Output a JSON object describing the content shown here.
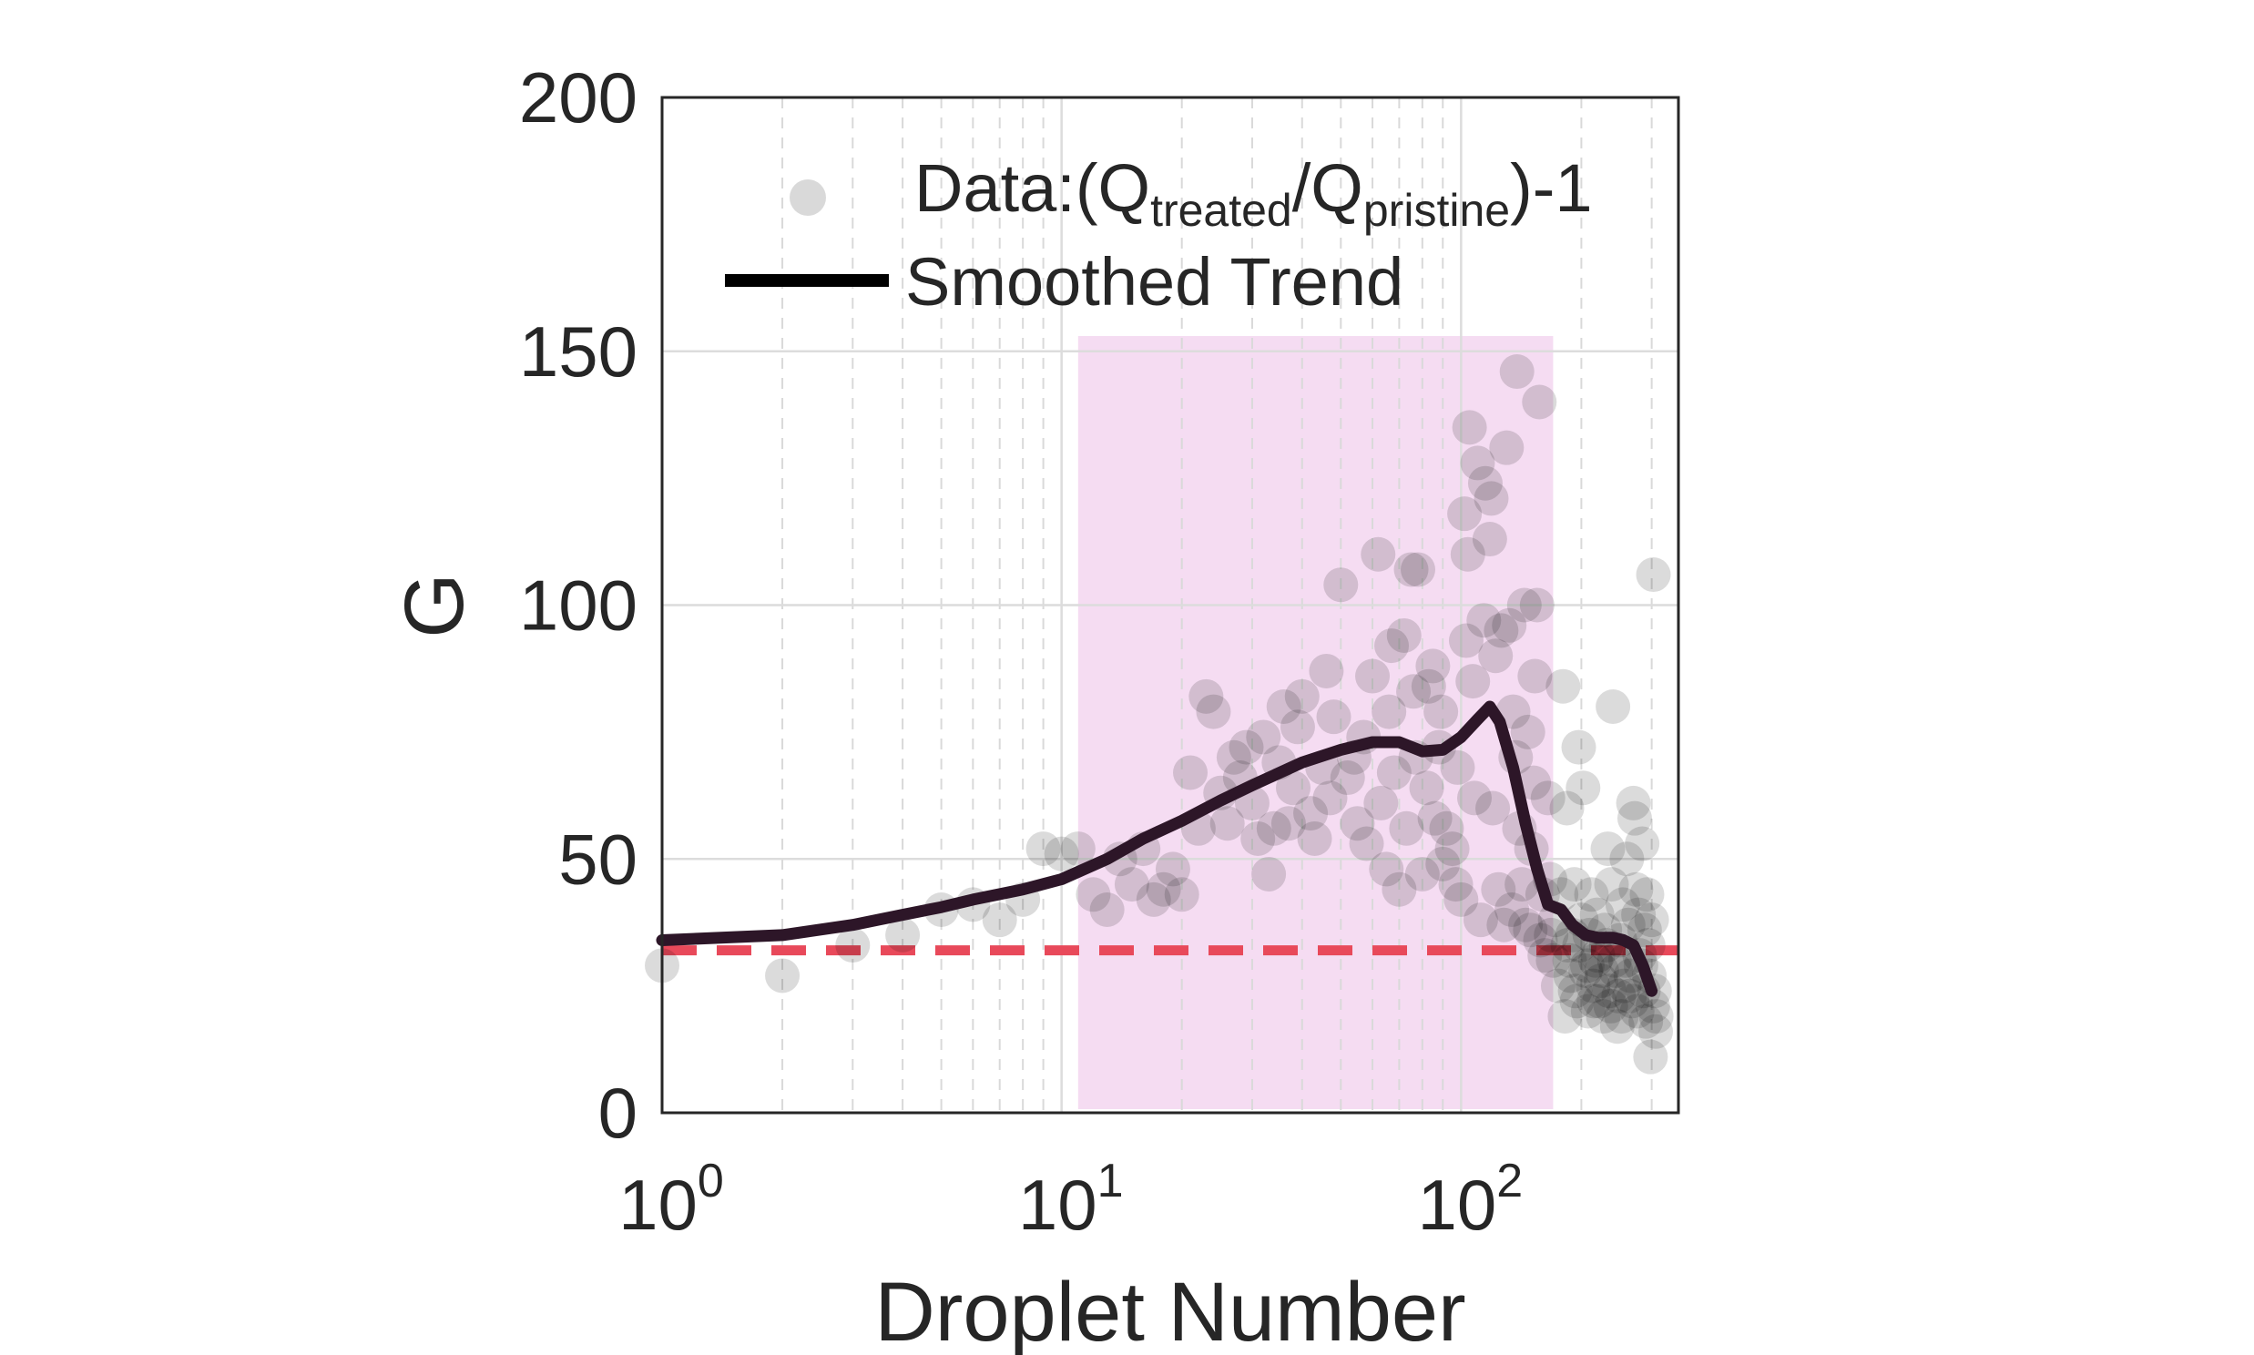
{
  "chart_data": {
    "type": "scatter",
    "xscale": "log",
    "xlabel": "Droplet Number",
    "ylabel": "G",
    "xlim": [
      1,
      350
    ],
    "ylim": [
      0,
      200
    ],
    "xticks": [
      {
        "base": "10",
        "exp": "0",
        "value": 1
      },
      {
        "base": "10",
        "exp": "1",
        "value": 10
      },
      {
        "base": "10",
        "exp": "2",
        "value": 100
      }
    ],
    "yticks": [
      0,
      50,
      100,
      150,
      200
    ],
    "grid": true,
    "highlight_region": {
      "x_start": 11,
      "x_end": 170,
      "y_top": 153,
      "color": "#f5dcf2"
    },
    "reference_line": {
      "y": 32,
      "color": "#e8495a",
      "style": "dashed"
    },
    "legend": {
      "position": "top",
      "data_label_prefix": "Data:(Q",
      "data_label_sub1": "treated",
      "data_label_mid": "/Q",
      "data_label_sub2": "pristine",
      "data_label_suffix": ")-1",
      "trend_label": "Smoothed Trend"
    },
    "series": [
      {
        "name": "Data:(Qtreated/Qpristine)-1",
        "kind": "scatter",
        "color": "#000000",
        "points": [
          [
            1,
            29
          ],
          [
            2,
            27
          ],
          [
            3,
            33
          ],
          [
            4,
            35
          ],
          [
            5,
            40
          ],
          [
            6,
            41
          ],
          [
            7,
            38
          ],
          [
            8,
            42
          ],
          [
            9,
            52
          ],
          [
            10,
            51
          ],
          [
            11,
            52
          ],
          [
            12,
            43
          ],
          [
            13,
            40
          ],
          [
            14,
            50
          ],
          [
            15,
            45
          ],
          [
            16,
            52
          ],
          [
            17,
            42
          ],
          [
            18,
            44
          ],
          [
            19,
            48
          ],
          [
            20,
            43
          ],
          [
            21,
            67
          ],
          [
            22,
            56
          ],
          [
            23,
            82
          ],
          [
            24,
            79
          ],
          [
            25,
            63
          ],
          [
            26,
            57
          ],
          [
            27,
            70
          ],
          [
            28,
            66
          ],
          [
            29,
            72
          ],
          [
            30,
            61
          ],
          [
            31,
            54
          ],
          [
            32,
            74
          ],
          [
            33,
            47
          ],
          [
            34,
            56
          ],
          [
            35,
            69
          ],
          [
            36,
            80
          ],
          [
            37,
            57
          ],
          [
            38,
            64
          ],
          [
            39,
            76
          ],
          [
            40,
            82
          ],
          [
            42,
            59
          ],
          [
            43,
            54
          ],
          [
            45,
            68
          ],
          [
            46,
            87
          ],
          [
            47,
            62
          ],
          [
            48,
            78
          ],
          [
            50,
            104
          ],
          [
            52,
            66
          ],
          [
            54,
            70
          ],
          [
            55,
            57
          ],
          [
            57,
            74
          ],
          [
            58,
            53
          ],
          [
            60,
            86
          ],
          [
            62,
            110
          ],
          [
            63,
            61
          ],
          [
            65,
            48
          ],
          [
            66,
            79
          ],
          [
            67,
            92
          ],
          [
            68,
            67
          ],
          [
            70,
            44
          ],
          [
            72,
            94
          ],
          [
            73,
            56
          ],
          [
            75,
            107
          ],
          [
            76,
            83
          ],
          [
            77,
            70
          ],
          [
            78,
            107
          ],
          [
            80,
            47
          ],
          [
            82,
            64
          ],
          [
            83,
            84
          ],
          [
            85,
            88
          ],
          [
            86,
            58
          ],
          [
            88,
            72
          ],
          [
            89,
            79
          ],
          [
            90,
            49
          ],
          [
            92,
            56
          ],
          [
            95,
            52
          ],
          [
            97,
            45
          ],
          [
            98,
            68
          ],
          [
            100,
            42
          ],
          [
            102,
            118
          ],
          [
            103,
            93
          ],
          [
            104,
            110
          ],
          [
            105,
            135
          ],
          [
            107,
            85
          ],
          [
            108,
            62
          ],
          [
            110,
            128
          ],
          [
            112,
            38
          ],
          [
            114,
            97
          ],
          [
            115,
            124
          ],
          [
            118,
            113
          ],
          [
            119,
            121
          ],
          [
            120,
            60
          ],
          [
            122,
            90
          ],
          [
            124,
            44
          ],
          [
            126,
            95
          ],
          [
            128,
            37
          ],
          [
            130,
            131
          ],
          [
            132,
            96
          ],
          [
            134,
            40
          ],
          [
            135,
            79
          ],
          [
            137,
            70
          ],
          [
            138,
            146
          ],
          [
            140,
            56
          ],
          [
            142,
            45
          ],
          [
            144,
            100
          ],
          [
            145,
            37
          ],
          [
            147,
            75
          ],
          [
            149,
            36
          ],
          [
            150,
            52
          ],
          [
            152,
            65
          ],
          [
            153,
            86
          ],
          [
            155,
            100
          ],
          [
            157,
            140
          ],
          [
            158,
            34
          ],
          [
            160,
            43
          ],
          [
            162,
            31
          ],
          [
            165,
            62
          ],
          [
            167,
            46
          ],
          [
            168,
            35
          ],
          [
            170,
            30
          ],
          [
            172,
            38
          ],
          [
            175,
            25
          ],
          [
            178,
            43
          ],
          [
            180,
            84
          ],
          [
            182,
            19
          ],
          [
            184,
            60
          ],
          [
            185,
            33
          ],
          [
            187,
            30
          ],
          [
            188,
            27
          ],
          [
            190,
            35
          ],
          [
            192,
            45
          ],
          [
            193,
            24
          ],
          [
            195,
            22
          ],
          [
            197,
            72
          ],
          [
            198,
            33
          ],
          [
            200,
            38
          ],
          [
            202,
            64
          ],
          [
            205,
            28
          ],
          [
            207,
            29
          ],
          [
            208,
            20
          ],
          [
            210,
            35
          ],
          [
            212,
            43
          ],
          [
            214,
            25
          ],
          [
            215,
            22
          ],
          [
            217,
            30
          ],
          [
            219,
            39
          ],
          [
            220,
            31
          ],
          [
            222,
            22
          ],
          [
            224,
            26
          ],
          [
            225,
            28
          ],
          [
            227,
            19
          ],
          [
            229,
            36
          ],
          [
            231,
            33
          ],
          [
            233,
            52
          ],
          [
            235,
            24
          ],
          [
            237,
            21
          ],
          [
            238,
            45
          ],
          [
            240,
            80
          ],
          [
            242,
            30
          ],
          [
            244,
            28
          ],
          [
            246,
            17
          ],
          [
            248,
            23
          ],
          [
            250,
            34
          ],
          [
            252,
            19
          ],
          [
            254,
            41
          ],
          [
            256,
            25
          ],
          [
            258,
            30
          ],
          [
            260,
            50
          ],
          [
            262,
            37
          ],
          [
            264,
            23
          ],
          [
            266,
            27
          ],
          [
            268,
            22
          ],
          [
            270,
            61
          ],
          [
            272,
            58
          ],
          [
            274,
            44
          ],
          [
            276,
            20
          ],
          [
            278,
            39
          ],
          [
            280,
            31
          ],
          [
            282,
            29
          ],
          [
            284,
            53
          ],
          [
            286,
            24
          ],
          [
            288,
            36
          ],
          [
            290,
            18
          ],
          [
            292,
            43
          ],
          [
            294,
            33
          ],
          [
            296,
            27
          ],
          [
            298,
            11
          ],
          [
            300,
            38
          ],
          [
            302,
            21
          ],
          [
            303,
            106
          ],
          [
            305,
            24
          ],
          [
            307,
            16
          ],
          [
            308,
            19
          ]
        ]
      },
      {
        "name": "Smoothed Trend",
        "kind": "line",
        "color": "#2d1628",
        "points": [
          [
            1,
            34
          ],
          [
            2,
            35
          ],
          [
            3,
            37
          ],
          [
            4,
            39
          ],
          [
            5,
            40.5
          ],
          [
            6,
            42
          ],
          [
            8,
            44
          ],
          [
            10,
            46
          ],
          [
            13,
            50
          ],
          [
            16,
            54
          ],
          [
            20,
            57.5
          ],
          [
            25,
            61.5
          ],
          [
            30,
            64.5
          ],
          [
            40,
            69
          ],
          [
            50,
            71.5
          ],
          [
            60,
            73
          ],
          [
            70,
            73
          ],
          [
            80,
            71.2
          ],
          [
            90,
            71.5
          ],
          [
            100,
            74
          ],
          [
            110,
            77.5
          ],
          [
            118,
            80
          ],
          [
            125,
            77
          ],
          [
            135,
            68
          ],
          [
            145,
            57
          ],
          [
            155,
            48
          ],
          [
            165,
            41
          ],
          [
            178,
            40
          ],
          [
            190,
            37
          ],
          [
            205,
            35
          ],
          [
            220,
            34.5
          ],
          [
            240,
            34.5
          ],
          [
            255,
            34
          ],
          [
            270,
            33
          ],
          [
            285,
            29
          ],
          [
            300,
            24
          ]
        ]
      }
    ]
  }
}
